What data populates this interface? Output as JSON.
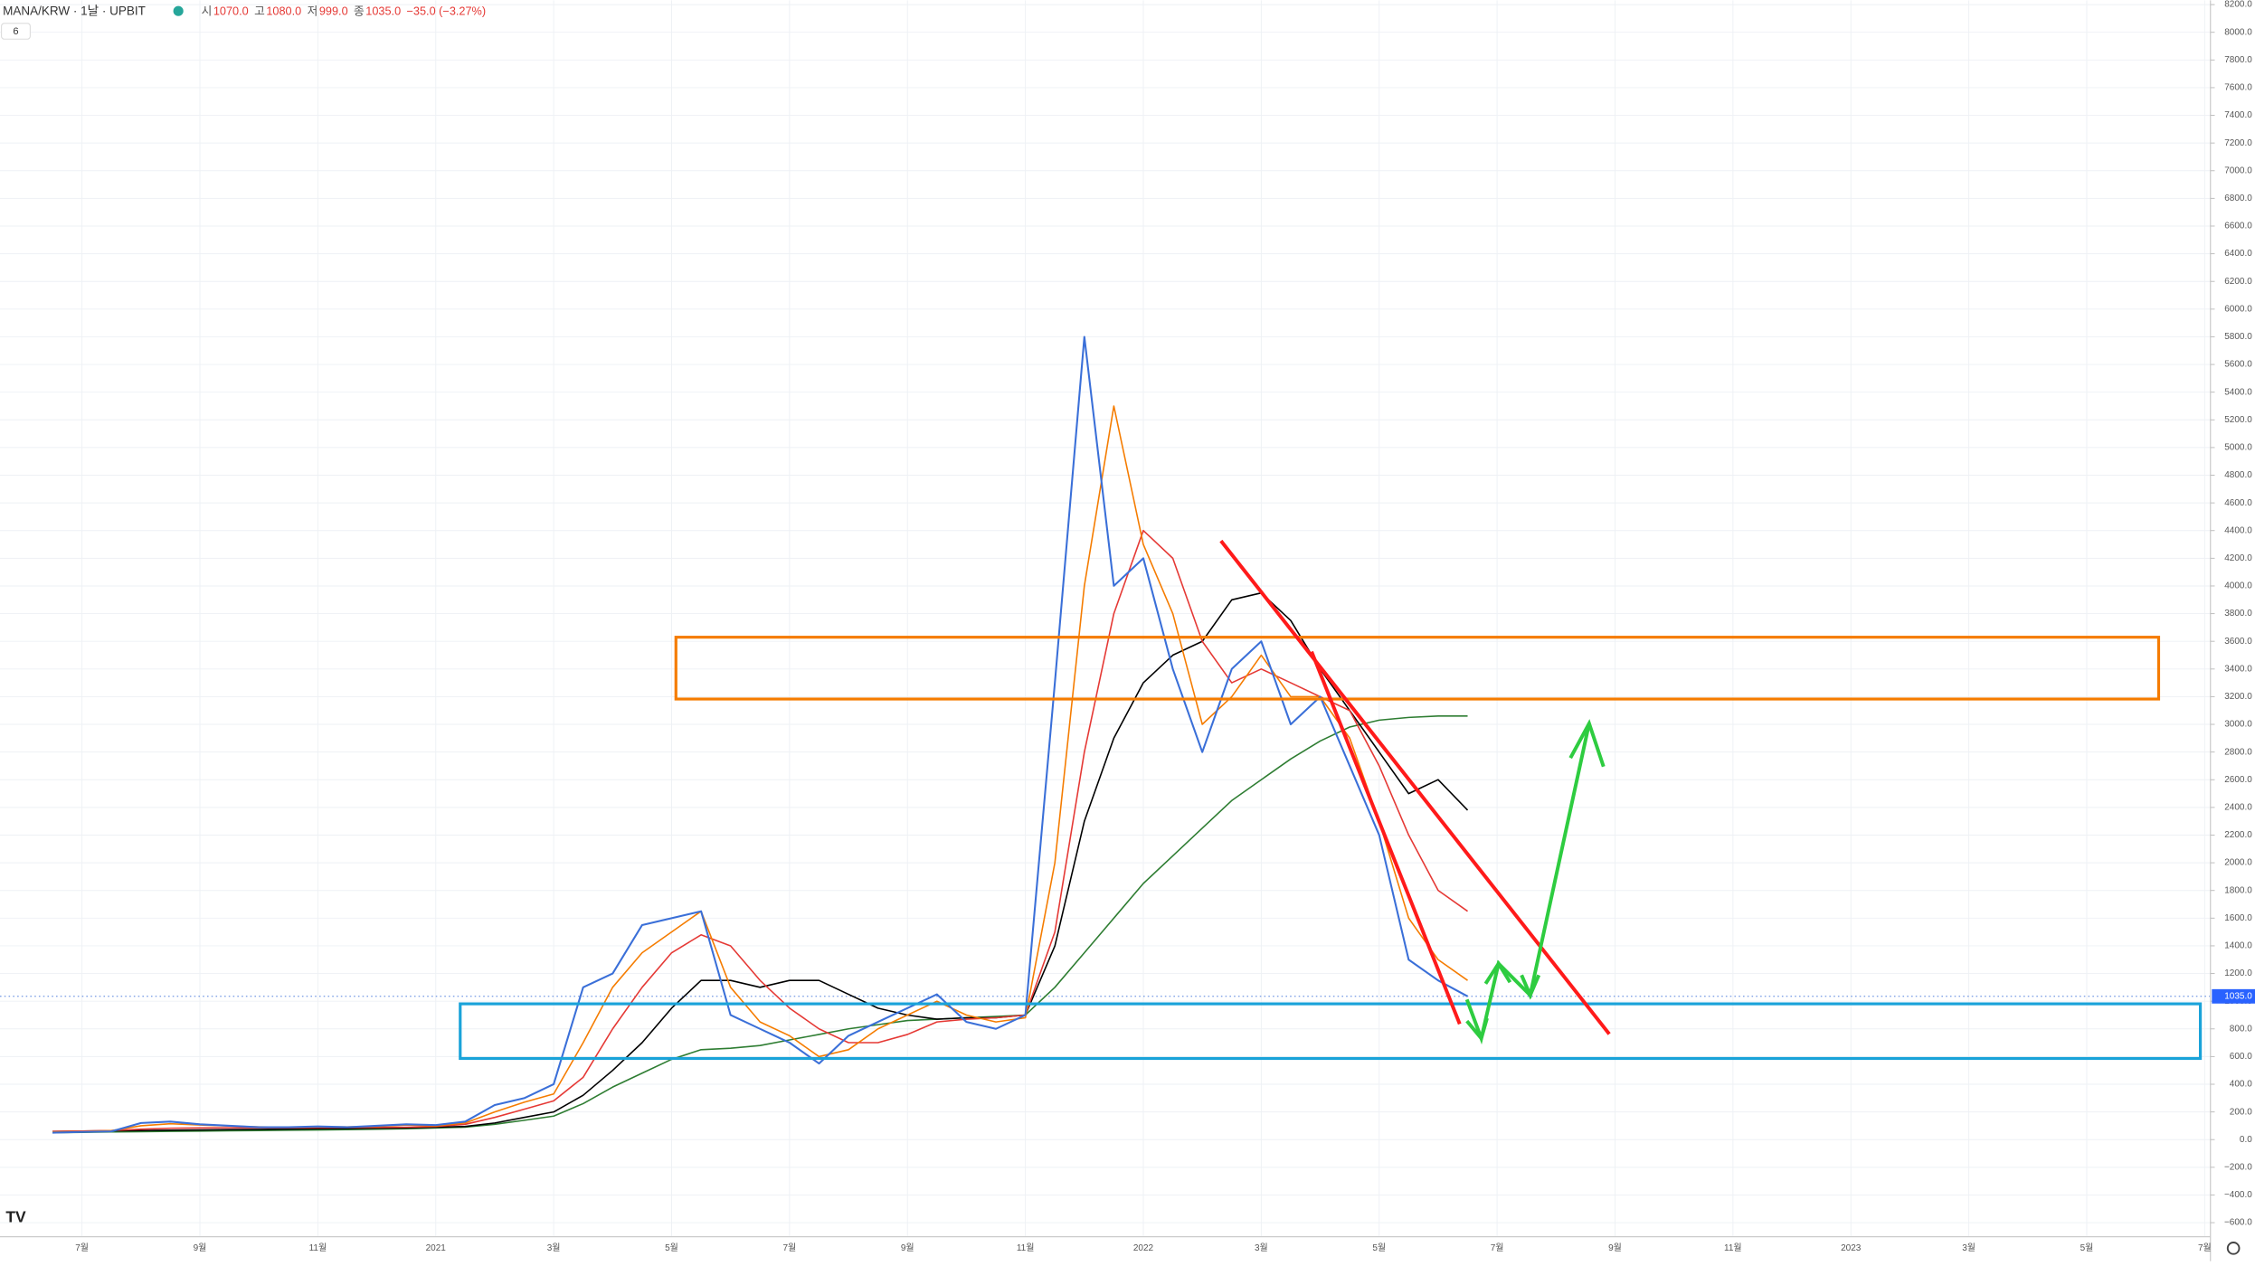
{
  "chart_data": {
    "type": "line",
    "symbol": "MANA/KRW · 1날 · UPBIT",
    "indicator_count": "6",
    "ohlc": [
      {
        "name": "시",
        "value": 1070,
        "label": "1070.0"
      },
      {
        "name": "고",
        "value": 1080,
        "label": "1080.0"
      },
      {
        "name": "저",
        "value": 999,
        "label": "999.0"
      },
      {
        "name": "종",
        "value": 1035,
        "label": "1035.0"
      }
    ],
    "change": "−35.0 (−3.27%)",
    "last_price": {
      "value": 1035,
      "label": "1035.0"
    },
    "categories": [
      null,
      "7월",
      null,
      null,
      null,
      "9월",
      null,
      null,
      null,
      "11월",
      null,
      null,
      null,
      "2021",
      null,
      null,
      null,
      "3월",
      null,
      null,
      null,
      "5월",
      null,
      null,
      null,
      "7월",
      null,
      null,
      null,
      "9월",
      null,
      null,
      null,
      "11월",
      null,
      null,
      null,
      "2022",
      null,
      null,
      null,
      "3월",
      null,
      null,
      null,
      "5월",
      null,
      null,
      null,
      "7월",
      null,
      null,
      null,
      "9월",
      null,
      null,
      null,
      "11월",
      null,
      null,
      null,
      "2023",
      null,
      null,
      null,
      "3월",
      null,
      null,
      null,
      "5월",
      null,
      null,
      null,
      "7월"
    ],
    "series": [
      {
        "color": "#2e7d32",
        "values": [
          50,
          52,
          55,
          58,
          60,
          62,
          64,
          66,
          68,
          70,
          72,
          75,
          78,
          85,
          90,
          110,
          140,
          170,
          260,
          380,
          480,
          580,
          650,
          660,
          680,
          720,
          760,
          800,
          830,
          860,
          870,
          880,
          890,
          900,
          1100,
          1350,
          1600,
          1850,
          2050,
          2250,
          2450,
          2600,
          2750,
          2880,
          2980,
          3030,
          3050,
          3060,
          3060,
          null,
          null,
          null,
          null,
          null,
          null,
          null,
          null,
          null,
          null,
          null,
          null,
          null,
          null,
          null,
          null,
          null,
          null,
          null,
          null,
          null,
          null,
          null,
          null,
          null
        ]
      },
      {
        "color": "#000000",
        "values": [
          60,
          62,
          64,
          66,
          68,
          70,
          72,
          74,
          76,
          78,
          80,
          82,
          85,
          90,
          95,
          120,
          160,
          200,
          320,
          500,
          700,
          950,
          1150,
          1150,
          1100,
          1150,
          1150,
          1050,
          950,
          900,
          870,
          880,
          880,
          900,
          1400,
          2300,
          2900,
          3300,
          3500,
          3600,
          3900,
          3950,
          3750,
          3400,
          3100,
          2800,
          2500,
          2600,
          2380,
          null,
          null,
          null,
          null,
          null,
          null,
          null,
          null,
          null,
          null,
          null,
          null,
          null,
          null,
          null,
          null,
          null,
          null,
          null,
          null,
          null,
          null,
          null,
          null,
          null
        ]
      },
      {
        "color": "#e53935",
        "values": [
          60,
          62,
          66,
          75,
          82,
          85,
          86,
          86,
          86,
          87,
          88,
          89,
          90,
          95,
          110,
          160,
          220,
          280,
          450,
          800,
          1100,
          1350,
          1480,
          1400,
          1150,
          950,
          800,
          700,
          700,
          760,
          850,
          870,
          880,
          900,
          1500,
          2800,
          3800,
          4400,
          4200,
          3600,
          3300,
          3400,
          3300,
          3200,
          3100,
          2700,
          2200,
          1800,
          1650,
          null,
          null,
          null,
          null,
          null,
          null,
          null,
          null,
          null,
          null,
          null,
          null,
          null,
          null,
          null,
          null,
          null,
          null,
          null,
          null,
          null,
          null,
          null,
          null,
          null
        ]
      },
      {
        "color": "#f57c00",
        "values": [
          55,
          58,
          65,
          100,
          115,
          105,
          98,
          92,
          90,
          92,
          92,
          96,
          105,
          100,
          120,
          200,
          270,
          330,
          700,
          1100,
          1350,
          1500,
          1650,
          1100,
          850,
          750,
          600,
          650,
          800,
          900,
          1000,
          900,
          850,
          880,
          2000,
          4000,
          5300,
          4300,
          3800,
          3000,
          3200,
          3500,
          3200,
          3200,
          2900,
          2300,
          1600,
          1300,
          1150,
          null,
          null,
          null,
          null,
          null,
          null,
          null,
          null,
          null,
          null,
          null,
          null,
          null,
          null,
          null,
          null,
          null,
          null,
          null,
          null,
          null,
          null,
          null,
          null,
          null
        ]
      },
      {
        "color": "#3a6fd8",
        "values": [
          50,
          55,
          60,
          120,
          130,
          110,
          100,
          90,
          90,
          95,
          90,
          100,
          110,
          105,
          130,
          250,
          300,
          400,
          1100,
          1200,
          1550,
          1600,
          1650,
          900,
          800,
          700,
          550,
          750,
          850,
          950,
          1050,
          850,
          800,
          900,
          3300,
          5800,
          4000,
          4200,
          3400,
          2800,
          3400,
          3600,
          3000,
          3200,
          2700,
          2200,
          1300,
          1150,
          1035,
          null,
          null,
          null,
          null,
          null,
          null,
          null,
          null,
          null,
          null,
          null,
          null,
          null,
          null,
          null,
          null,
          null,
          null,
          null,
          null,
          null,
          null,
          null,
          null,
          null
        ]
      }
    ],
    "ylim": [
      -600,
      8200
    ],
    "yticks": [
      {
        "value": -600,
        "label": "−600.0"
      },
      {
        "value": -400,
        "label": "−400.0"
      },
      {
        "value": -200,
        "label": "−200.0"
      },
      {
        "value": 0,
        "label": "0.0"
      },
      {
        "value": 200,
        "label": "200.0"
      },
      {
        "value": 400,
        "label": "400.0"
      },
      {
        "value": 600,
        "label": "600.0"
      },
      {
        "value": 800,
        "label": "800.0"
      },
      {
        "value": 1000,
        "label": "1000.0"
      },
      {
        "value": 1200,
        "label": "1200.0"
      },
      {
        "value": 1400,
        "label": "1400.0"
      },
      {
        "value": 1600,
        "label": "1600.0"
      },
      {
        "value": 1800,
        "label": "1800.0"
      },
      {
        "value": 2000,
        "label": "2000.0"
      },
      {
        "value": 2200,
        "label": "2200.0"
      },
      {
        "value": 2400,
        "label": "2400.0"
      },
      {
        "value": 2600,
        "label": "2600.0"
      },
      {
        "value": 2800,
        "label": "2800.0"
      },
      {
        "value": 3000,
        "label": "3000.0"
      },
      {
        "value": 3200,
        "label": "3200.0"
      },
      {
        "value": 3400,
        "label": "3400.0"
      },
      {
        "value": 3600,
        "label": "3600.0"
      },
      {
        "value": 3800,
        "label": "3800.0"
      },
      {
        "value": 4000,
        "label": "4000.0"
      },
      {
        "value": 4200,
        "label": "4200.0"
      },
      {
        "value": 4400,
        "label": "4400.0"
      },
      {
        "value": 4600,
        "label": "4600.0"
      },
      {
        "value": 4800,
        "label": "4800.0"
      },
      {
        "value": 5000,
        "label": "5000.0"
      },
      {
        "value": 5200,
        "label": "5200.0"
      },
      {
        "value": 5400,
        "label": "5400.0"
      },
      {
        "value": 5600,
        "label": "5600.0"
      },
      {
        "value": 5800,
        "label": "5800.0"
      },
      {
        "value": 6000,
        "label": "6000.0"
      },
      {
        "value": 6200,
        "label": "6200.0"
      },
      {
        "value": 6400,
        "label": "6400.0"
      },
      {
        "value": 6600,
        "label": "6600.0"
      },
      {
        "value": 6800,
        "label": "6800.0"
      },
      {
        "value": 7000,
        "label": "7000.0"
      },
      {
        "value": 7200,
        "label": "7200.0"
      },
      {
        "value": 7400,
        "label": "7400.0"
      },
      {
        "value": 7600,
        "label": "7600.0"
      },
      {
        "value": 7800,
        "label": "7800.0"
      },
      {
        "value": 8000,
        "label": "8000.0"
      },
      {
        "value": 8200,
        "label": "8200.0"
      }
    ],
    "grid": true
  }
}
